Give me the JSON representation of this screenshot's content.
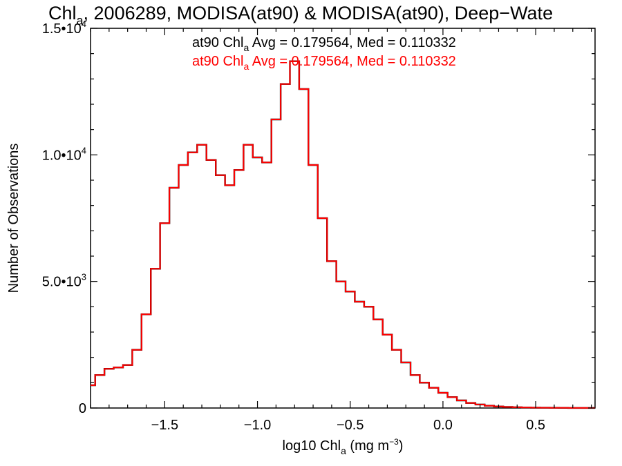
{
  "colors": {
    "series_black": "#000000",
    "series_red": "#ff0000",
    "axis": "#000000"
  },
  "chart_data": {
    "type": "line",
    "title_parts": {
      "pre": "Chl",
      "sub": "a",
      "post": ", 2006289, MODISA(at90) & MODISA(at90), Deep−Wate"
    },
    "xlabel_parts": {
      "pre": "log10 Chl",
      "sub": "a",
      "mid": " (mg m",
      "sup": "−3",
      "post": ")"
    },
    "ylabel": "Number of Observations",
    "xlim": [
      -1.9,
      0.82
    ],
    "ylim": [
      0,
      15000
    ],
    "x_ticks": [
      {
        "value": -1.5,
        "label": "−1.5"
      },
      {
        "value": -1.0,
        "label": "−1.0"
      },
      {
        "value": -0.5,
        "label": "−0.5"
      },
      {
        "value": 0.0,
        "label": "0.0"
      },
      {
        "value": 0.5,
        "label": "0.5"
      }
    ],
    "y_ticks": [
      {
        "value": 0,
        "mant": "0",
        "exp": ""
      },
      {
        "value": 5000,
        "mant": "5.0•10",
        "exp": "3"
      },
      {
        "value": 10000,
        "mant": "1.0•10",
        "exp": "4"
      },
      {
        "value": 15000,
        "mant": "1.5•10",
        "exp": "4"
      }
    ],
    "grid": false,
    "annotations": [
      {
        "pre": "at90 Chl",
        "sub": "a",
        "post": " Avg = 0.179564, Med = 0.110332",
        "color": "#000000"
      },
      {
        "pre": "at90 Chl",
        "sub": "a",
        "post": " Avg = 0.179564, Med = 0.110332",
        "color": "#ff0000"
      }
    ],
    "series": [
      {
        "color": "#000000",
        "x": [
          -1.9,
          -1.85,
          -1.8,
          -1.75,
          -1.7,
          -1.65,
          -1.6,
          -1.55,
          -1.5,
          -1.45,
          -1.4,
          -1.35,
          -1.3,
          -1.25,
          -1.2,
          -1.15,
          -1.1,
          -1.05,
          -1.0,
          -0.95,
          -0.9,
          -0.85,
          -0.8,
          -0.75,
          -0.7,
          -0.65,
          -0.6,
          -0.55,
          -0.5,
          -0.45,
          -0.4,
          -0.35,
          -0.3,
          -0.25,
          -0.2,
          -0.15,
          -0.1,
          -0.05,
          0.0,
          0.05,
          0.1,
          0.15,
          0.2,
          0.25,
          0.3,
          0.35,
          0.4,
          0.45,
          0.5,
          0.55,
          0.6,
          0.65,
          0.7,
          0.75,
          0.8
        ],
        "y": [
          900,
          1300,
          1550,
          1600,
          1700,
          2300,
          3700,
          5500,
          7300,
          8700,
          9600,
          10100,
          10400,
          9800,
          9200,
          8800,
          9400,
          10400,
          9900,
          9700,
          11400,
          12800,
          13700,
          12600,
          9600,
          7500,
          5800,
          5000,
          4600,
          4200,
          4000,
          3500,
          2900,
          2300,
          1800,
          1300,
          1000,
          800,
          600,
          430,
          300,
          200,
          140,
          90,
          60,
          40,
          30,
          20,
          14,
          10,
          7,
          5,
          4,
          3,
          2
        ]
      },
      {
        "color": "#ff0000",
        "x": [
          -1.9,
          -1.85,
          -1.8,
          -1.75,
          -1.7,
          -1.65,
          -1.6,
          -1.55,
          -1.5,
          -1.45,
          -1.4,
          -1.35,
          -1.3,
          -1.25,
          -1.2,
          -1.15,
          -1.1,
          -1.05,
          -1.0,
          -0.95,
          -0.9,
          -0.85,
          -0.8,
          -0.75,
          -0.7,
          -0.65,
          -0.6,
          -0.55,
          -0.5,
          -0.45,
          -0.4,
          -0.35,
          -0.3,
          -0.25,
          -0.2,
          -0.15,
          -0.1,
          -0.05,
          0.0,
          0.05,
          0.1,
          0.15,
          0.2,
          0.25,
          0.3,
          0.35,
          0.4,
          0.45,
          0.5,
          0.55,
          0.6,
          0.65,
          0.7,
          0.75,
          0.8
        ],
        "y": [
          900,
          1300,
          1550,
          1600,
          1700,
          2300,
          3700,
          5500,
          7300,
          8700,
          9600,
          10100,
          10400,
          9800,
          9200,
          8800,
          9400,
          10400,
          9900,
          9700,
          11400,
          12800,
          13700,
          12600,
          9600,
          7500,
          5800,
          5000,
          4600,
          4200,
          4000,
          3500,
          2900,
          2300,
          1800,
          1300,
          1000,
          800,
          600,
          430,
          300,
          200,
          140,
          90,
          60,
          40,
          30,
          20,
          14,
          10,
          7,
          5,
          4,
          3,
          2
        ]
      }
    ]
  }
}
